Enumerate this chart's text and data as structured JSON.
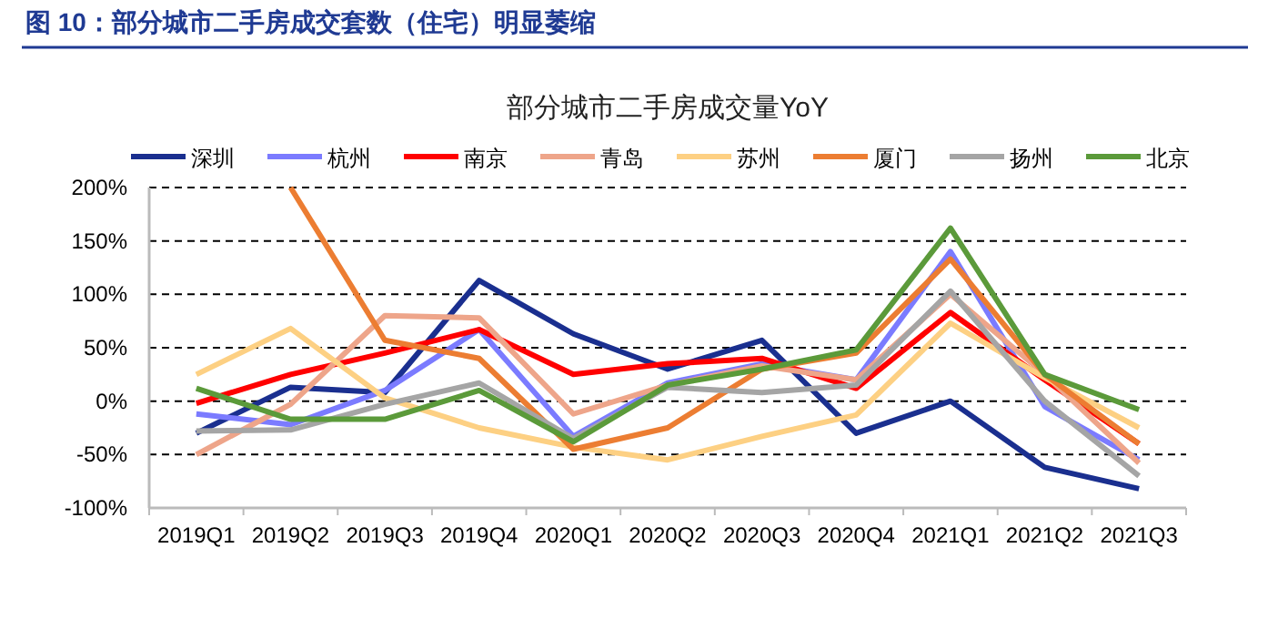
{
  "chart_data": {
    "type": "line",
    "title": "图 10：部分城市二手房成交套数（住宅）明显萎缩",
    "subtitle": "部分城市二手房成交量YoY",
    "categories": [
      "2019Q1",
      "2019Q2",
      "2019Q3",
      "2019Q4",
      "2020Q1",
      "2020Q2",
      "2020Q3",
      "2020Q4",
      "2021Q1",
      "2021Q2",
      "2021Q3"
    ],
    "series": [
      {
        "name": "深圳",
        "color": "#1a2f8f",
        "values": [
          -30,
          13,
          8,
          113,
          63,
          30,
          57,
          -30,
          0,
          -62,
          -82
        ]
      },
      {
        "name": "杭州",
        "color": "#7b7bff",
        "values": [
          -12,
          -22,
          10,
          67,
          -33,
          17,
          35,
          20,
          140,
          -5,
          -55
        ]
      },
      {
        "name": "南京",
        "color": "#ff0000",
        "values": [
          -2,
          25,
          45,
          67,
          25,
          35,
          40,
          12,
          83,
          20,
          -40
        ]
      },
      {
        "name": "青岛",
        "color": "#eea58a",
        "values": [
          -50,
          -3,
          80,
          78,
          -12,
          15,
          33,
          20,
          100,
          25,
          -58
        ]
      },
      {
        "name": "苏州",
        "color": "#fdd083",
        "values": [
          25,
          68,
          3,
          -25,
          -43,
          -55,
          -33,
          -13,
          73,
          22,
          -25
        ]
      },
      {
        "name": "厦门",
        "color": "#ec7d32",
        "values": [
          null,
          200,
          57,
          40,
          -45,
          -25,
          30,
          45,
          133,
          25,
          -40
        ]
      },
      {
        "name": "扬州",
        "color": "#a5a5a5",
        "values": [
          -28,
          -27,
          -3,
          17,
          -35,
          13,
          8,
          15,
          103,
          0,
          -70
        ]
      },
      {
        "name": "北京",
        "color": "#5b9a3a",
        "values": [
          12,
          -17,
          -17,
          10,
          -38,
          15,
          30,
          48,
          162,
          25,
          -8
        ]
      }
    ],
    "ylim": [
      -100,
      200
    ],
    "yticks": [
      {
        "value": -100,
        "label": "-100%"
      },
      {
        "value": -50,
        "label": "-50%"
      },
      {
        "value": 0,
        "label": "0%"
      },
      {
        "value": 50,
        "label": "50%"
      },
      {
        "value": 100,
        "label": "100%"
      },
      {
        "value": 150,
        "label": "150%"
      },
      {
        "value": 200,
        "label": "200%"
      }
    ],
    "grid": "y",
    "legend": "top",
    "line_style": "solid"
  }
}
